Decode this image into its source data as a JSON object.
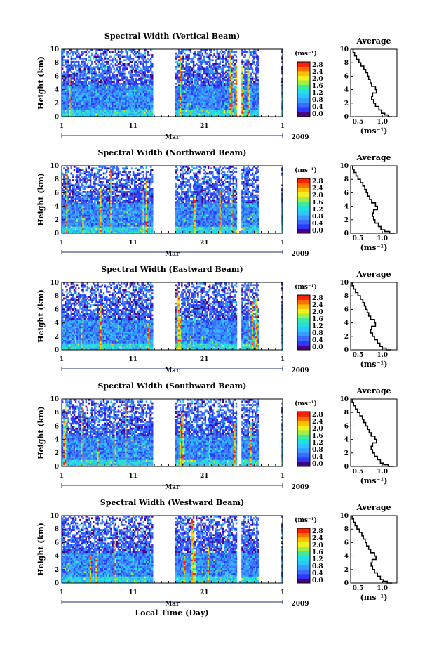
{
  "chart_data": [
    {
      "type": "heatmap",
      "title": "Spectral Width (Vertical Beam)",
      "ylabel": "Height (km)",
      "unit": "(ms⁻¹)",
      "x_ticks": [
        "1",
        "11",
        "21",
        "1"
      ],
      "month": "Mar",
      "year": "2009",
      "ylim": [
        0,
        10
      ],
      "y_ticks": [
        0,
        2,
        4,
        6,
        8,
        10
      ],
      "colorbar_ticks": [
        "0.0",
        "0.4",
        "0.8",
        "1.2",
        "1.6",
        "2.0",
        "2.4",
        "2.8"
      ],
      "average": {
        "title": "Average",
        "xlabel": "(ms⁻¹)",
        "x_ticks": [
          "0.5",
          "1.0"
        ],
        "xlim": [
          0.35,
          1.3
        ],
        "height": [
          0,
          0.25,
          0.5,
          1,
          1.5,
          2,
          2.5,
          3,
          3.5,
          4,
          4.5,
          5,
          5.5,
          6,
          6.5,
          7,
          7.5,
          8,
          8.5,
          9,
          9.5,
          10
        ],
        "width": [
          1.2,
          1.12,
          1.05,
          0.98,
          0.93,
          0.86,
          0.82,
          0.78,
          0.8,
          0.88,
          0.86,
          0.78,
          0.75,
          0.72,
          0.7,
          0.66,
          0.62,
          0.56,
          0.52,
          0.47,
          0.43,
          0.4
        ]
      }
    },
    {
      "type": "heatmap",
      "title": "Spectral Width (Northward Beam)",
      "ylabel": "Height (km)",
      "unit": "(ms⁻¹)",
      "x_ticks": [
        "1",
        "11",
        "21",
        "1"
      ],
      "month": "Mar",
      "year": "2009",
      "ylim": [
        0,
        10
      ],
      "y_ticks": [
        0,
        2,
        4,
        6,
        8,
        10
      ],
      "colorbar_ticks": [
        "0.0",
        "0.4",
        "0.8",
        "1.2",
        "1.6",
        "2.0",
        "2.4",
        "2.8"
      ],
      "average": {
        "title": "Average",
        "xlabel": "(ms⁻¹)",
        "x_ticks": [
          "0.5",
          "1.0"
        ],
        "xlim": [
          0.35,
          1.3
        ],
        "height": [
          0,
          0.25,
          0.5,
          1,
          1.5,
          2,
          2.5,
          3,
          3.5,
          4,
          4.5,
          5,
          5.5,
          6,
          6.5,
          7,
          7.5,
          8,
          8.5,
          9,
          9.5,
          10
        ],
        "width": [
          1.25,
          1.15,
          1.05,
          0.97,
          0.92,
          0.85,
          0.82,
          0.8,
          0.82,
          0.9,
          0.86,
          0.78,
          0.74,
          0.7,
          0.67,
          0.64,
          0.6,
          0.55,
          0.5,
          0.46,
          0.42,
          0.39
        ]
      }
    },
    {
      "type": "heatmap",
      "title": "Spectral Width (Eastward Beam)",
      "ylabel": "Height (km)",
      "unit": "(ms⁻¹)",
      "x_ticks": [
        "1",
        "11",
        "21",
        "1"
      ],
      "month": "Mar",
      "year": "2009",
      "ylim": [
        0,
        10
      ],
      "y_ticks": [
        0,
        2,
        4,
        6,
        8,
        10
      ],
      "colorbar_ticks": [
        "0.0",
        "0.4",
        "0.8",
        "1.2",
        "1.6",
        "2.0",
        "2.4",
        "2.8"
      ],
      "average": {
        "title": "Average",
        "xlabel": "(ms⁻¹)",
        "x_ticks": [
          "0.5",
          "1.0"
        ],
        "xlim": [
          0.35,
          1.3
        ],
        "height": [
          0,
          0.25,
          0.5,
          1,
          1.5,
          2,
          2.5,
          3,
          3.5,
          4,
          4.5,
          5,
          5.5,
          6,
          6.5,
          7,
          7.5,
          8,
          8.5,
          9,
          9.5,
          10
        ],
        "width": [
          1.18,
          1.08,
          1.0,
          0.95,
          0.9,
          0.84,
          0.8,
          0.76,
          0.78,
          0.86,
          0.84,
          0.76,
          0.72,
          0.69,
          0.66,
          0.63,
          0.6,
          0.55,
          0.5,
          0.45,
          0.41,
          0.38
        ]
      }
    },
    {
      "type": "heatmap",
      "title": "Spectral Width (Southward Beam)",
      "ylabel": "Height (km)",
      "unit": "(ms⁻¹)",
      "x_ticks": [
        "1",
        "11",
        "21",
        "1"
      ],
      "month": "Mar",
      "year": "2009",
      "ylim": [
        0,
        10
      ],
      "y_ticks": [
        0,
        2,
        4,
        6,
        8,
        10
      ],
      "colorbar_ticks": [
        "0.0",
        "0.4",
        "0.8",
        "1.2",
        "1.6",
        "2.0",
        "2.4",
        "2.8"
      ],
      "average": {
        "title": "Average",
        "xlabel": "(ms⁻¹)",
        "x_ticks": [
          "0.5",
          "1.0"
        ],
        "xlim": [
          0.35,
          1.3
        ],
        "height": [
          0,
          0.25,
          0.5,
          1,
          1.5,
          2,
          2.5,
          3,
          3.5,
          4,
          4.5,
          5,
          5.5,
          6,
          6.5,
          7,
          7.5,
          8,
          8.5,
          9,
          9.5,
          10
        ],
        "width": [
          1.22,
          1.12,
          1.03,
          0.96,
          0.9,
          0.84,
          0.8,
          0.77,
          0.8,
          0.88,
          0.85,
          0.77,
          0.73,
          0.7,
          0.66,
          0.62,
          0.59,
          0.54,
          0.49,
          0.45,
          0.41,
          0.38
        ]
      }
    },
    {
      "type": "heatmap",
      "title": "Spectral Width (Westward Beam)",
      "ylabel": "Height (km)",
      "unit": "(ms⁻¹)",
      "x_ticks": [
        "1",
        "11",
        "21",
        "1"
      ],
      "month": "Mar",
      "year": "2009",
      "ylim": [
        0,
        10
      ],
      "y_ticks": [
        0,
        2,
        4,
        6,
        8,
        10
      ],
      "colorbar_ticks": [
        "0.0",
        "0.4",
        "0.8",
        "1.2",
        "1.6",
        "2.0",
        "2.4",
        "2.8"
      ],
      "average": {
        "title": "Average",
        "xlabel": "(ms⁻¹)",
        "x_ticks": [
          "0.5",
          "1.0"
        ],
        "xlim": [
          0.35,
          1.3
        ],
        "height": [
          0,
          0.25,
          0.5,
          1,
          1.5,
          2,
          2.5,
          3,
          3.5,
          4,
          4.5,
          5,
          5.5,
          6,
          6.5,
          7,
          7.5,
          8,
          8.5,
          9,
          9.5,
          10
        ],
        "width": [
          1.2,
          1.1,
          1.02,
          0.96,
          0.9,
          0.84,
          0.8,
          0.77,
          0.79,
          0.87,
          0.84,
          0.76,
          0.72,
          0.68,
          0.65,
          0.61,
          0.58,
          0.53,
          0.48,
          0.44,
          0.41,
          0.38
        ]
      }
    }
  ],
  "footer": {
    "xlabel": "Local Time (Day)"
  },
  "colors": {
    "scale": [
      "#4b0082",
      "#2b3aff",
      "#3a6dff",
      "#3a9bff",
      "#2ec4ff",
      "#20e0e0",
      "#40e8a0",
      "#a0f040",
      "#f0f020",
      "#ffc000",
      "#ff7000",
      "#ff2000"
    ]
  }
}
